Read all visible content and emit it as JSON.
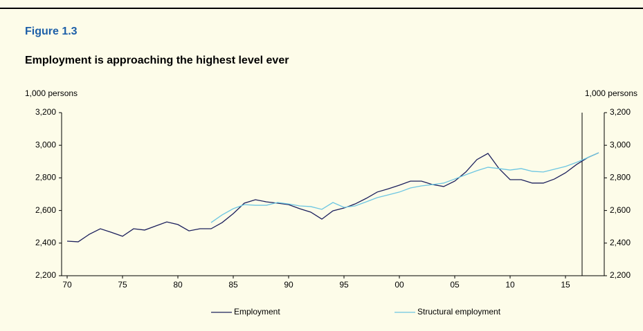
{
  "chart_data": {
    "type": "line",
    "title": "Figure 1.3",
    "subtitle": "Employment is approaching the highest level ever",
    "y_label": "1,000 persons",
    "y2_label": "1,000 persons",
    "x": [
      1970,
      1971,
      1972,
      1973,
      1974,
      1975,
      1976,
      1977,
      1978,
      1979,
      1980,
      1981,
      1982,
      1983,
      1984,
      1985,
      1986,
      1987,
      1988,
      1989,
      1990,
      1991,
      1992,
      1993,
      1994,
      1995,
      1996,
      1997,
      1998,
      1999,
      2000,
      2001,
      2002,
      2003,
      2004,
      2005,
      2006,
      2007,
      2008,
      2009,
      2010,
      2011,
      2012,
      2013,
      2014,
      2015,
      2016,
      2017,
      2018
    ],
    "series": [
      {
        "name": "Employment",
        "color": "#1b1f5c",
        "values": [
          2412,
          2408,
          2454,
          2488,
          2466,
          2442,
          2488,
          2480,
          2505,
          2530,
          2514,
          2475,
          2488,
          2488,
          2526,
          2581,
          2645,
          2666,
          2653,
          2645,
          2636,
          2611,
          2590,
          2547,
          2598,
          2615,
          2640,
          2674,
          2713,
          2733,
          2755,
          2780,
          2780,
          2759,
          2747,
          2780,
          2836,
          2912,
          2950,
          2857,
          2789,
          2789,
          2768,
          2768,
          2793,
          2831,
          2882,
          2924,
          2954
        ]
      },
      {
        "name": "Structural employment",
        "color": "#6cc6e2",
        "values": [
          null,
          null,
          null,
          null,
          null,
          null,
          null,
          null,
          null,
          null,
          null,
          null,
          null,
          2526,
          2573,
          2611,
          2636,
          2632,
          2632,
          2649,
          2640,
          2628,
          2624,
          2607,
          2649,
          2619,
          2628,
          2653,
          2679,
          2696,
          2713,
          2738,
          2751,
          2759,
          2768,
          2793,
          2819,
          2844,
          2865,
          2857,
          2848,
          2857,
          2840,
          2836,
          2853,
          2870,
          2895,
          2924,
          2954
        ]
      }
    ],
    "xlim": [
      1969.5,
      2018.5
    ],
    "xticks": [
      {
        "value": 1970,
        "label": "70"
      },
      {
        "value": 1975,
        "label": "75"
      },
      {
        "value": 1980,
        "label": "80"
      },
      {
        "value": 1985,
        "label": "85"
      },
      {
        "value": 1990,
        "label": "90"
      },
      {
        "value": 1995,
        "label": "95"
      },
      {
        "value": 2000,
        "label": "00"
      },
      {
        "value": 2005,
        "label": "05"
      },
      {
        "value": 2010,
        "label": "10"
      },
      {
        "value": 2015,
        "label": "15"
      }
    ],
    "ylim": [
      2200,
      3200
    ],
    "yticks": [
      {
        "value": 2200,
        "label": "2,200"
      },
      {
        "value": 2400,
        "label": "2,400"
      },
      {
        "value": 2600,
        "label": "2,600"
      },
      {
        "value": 2800,
        "label": "2,800"
      },
      {
        "value": 3000,
        "label": "3,000"
      },
      {
        "value": 3200,
        "label": "3,200"
      }
    ],
    "y2lim": [
      2200,
      3200
    ],
    "y2ticks": [
      {
        "value": 2200,
        "label": "2,200"
      },
      {
        "value": 2400,
        "label": "2,400"
      },
      {
        "value": 2600,
        "label": "2,600"
      },
      {
        "value": 2800,
        "label": "2,800"
      },
      {
        "value": 3000,
        "label": "3,000"
      },
      {
        "value": 3200,
        "label": "3,200"
      }
    ],
    "vline": 2016.5,
    "grid": false,
    "legend": "bottom"
  }
}
